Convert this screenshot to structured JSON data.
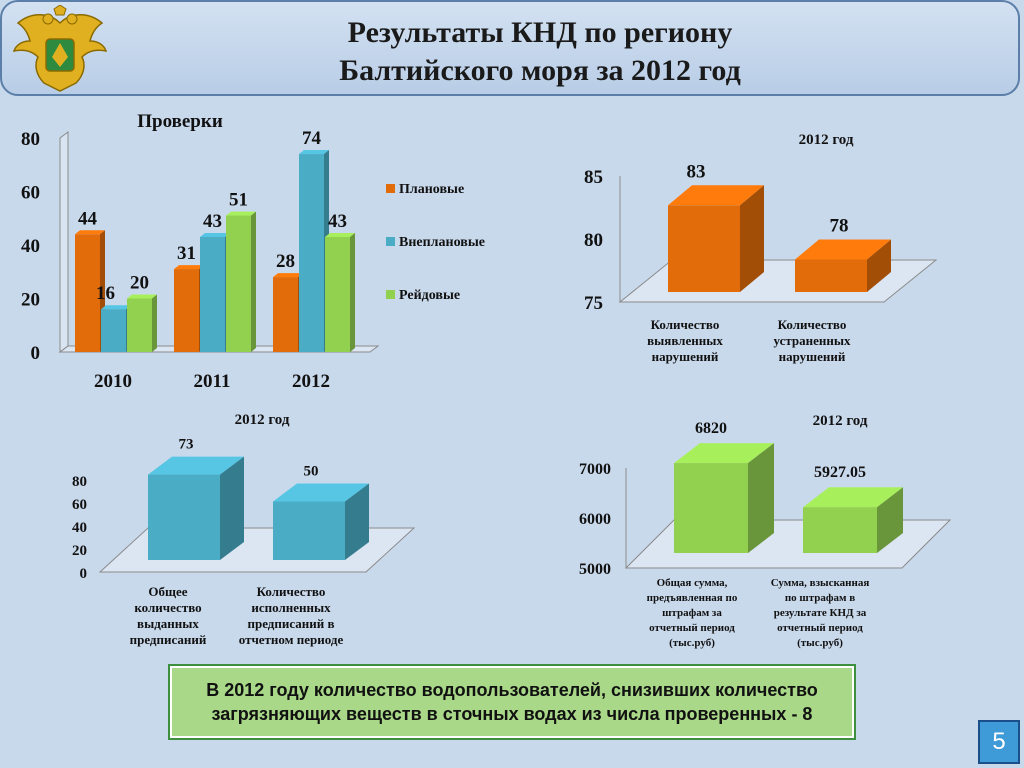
{
  "header": {
    "title_line1": "Результаты КНД по региону",
    "title_line2": "Балтийского моря за 2012 год"
  },
  "colors": {
    "orange": "#e36c0a",
    "blue": "#4bacc6",
    "green": "#92d050",
    "bottom_box": "#a8d888"
  },
  "chart_data": [
    {
      "type": "bar",
      "title": "Проверки",
      "categories": [
        "2010",
        "2011",
        "2012"
      ],
      "series": [
        {
          "name": "Плановые",
          "values": [
            44,
            31,
            28
          ],
          "color": "#e36c0a"
        },
        {
          "name": "Внеплановые",
          "values": [
            16,
            43,
            74
          ],
          "color": "#4bacc6"
        },
        {
          "name": "Рейдовые",
          "values": [
            20,
            51,
            43
          ],
          "color": "#92d050"
        }
      ],
      "ylim": [
        0,
        80
      ],
      "yticks": [
        "0",
        "20",
        "40",
        "60",
        "80"
      ],
      "legend": "right"
    },
    {
      "type": "bar",
      "title": "2012 год",
      "categories": [
        "Количество выявленных нарушений",
        "Количество устраненных нарушений"
      ],
      "values": [
        83,
        78
      ],
      "ylim": [
        75,
        85
      ],
      "yticks": [
        "75",
        "80",
        "85"
      ],
      "color": "#e36c0a"
    },
    {
      "type": "bar",
      "title": "2012 год",
      "categories": [
        "Общее количество выданных предписаний",
        "Количество исполненных предписаний в отчетном периоде"
      ],
      "values": [
        73,
        50
      ],
      "ylim": [
        0,
        80
      ],
      "yticks": [
        "0",
        "20",
        "40",
        "60",
        "80"
      ],
      "color": "#4bacc6"
    },
    {
      "type": "bar",
      "title": "2012 год",
      "categories": [
        "Общая сумма, предъявленная по штрафам за отчетный период (тыс.руб)",
        "Сумма, взысканная по штрафам в результате КНД за отчетный период (тыс.руб)"
      ],
      "values": [
        6820,
        5927.05
      ],
      "value_labels": [
        "6820",
        "5927.05"
      ],
      "ylim": [
        5000,
        7000
      ],
      "yticks": [
        "5000",
        "6000",
        "7000"
      ],
      "color": "#92d050"
    }
  ],
  "bottom_note": "В 2012 году количество водопользователей, снизивших количество загрязняющих веществ в сточных водах из числа проверенных - 8",
  "page_number": "5"
}
